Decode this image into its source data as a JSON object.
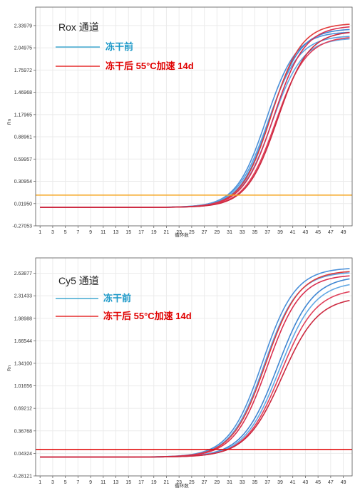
{
  "chart_data": [
    {
      "type": "line",
      "channel_title": "Rox 通道",
      "ylabel": "Rn",
      "xlabel": "循环数",
      "x_ticks": [
        "1",
        "3",
        "5",
        "7",
        "9",
        "11",
        "13",
        "15",
        "17",
        "19",
        "21",
        "23",
        "25",
        "27",
        "29",
        "31",
        "33",
        "35",
        "37",
        "39",
        "41",
        "43",
        "45",
        "47",
        "49"
      ],
      "y_ticks": [
        "2.33979",
        "2.04975",
        "1.75972",
        "1.46968",
        "1.17965",
        "0.88961",
        "0.59957",
        "0.30954",
        "0.01950",
        "-0.27053"
      ],
      "xlim": [
        0.3,
        50.4
      ],
      "ylim": [
        -0.27053,
        2.58
      ],
      "threshold": 0.13,
      "threshold_color": "#f5a623",
      "legend": [
        {
          "label": "冻干前",
          "color": "#1a98c8"
        },
        {
          "label": "冻干后 55°C加速 14d",
          "color": "#e00000"
        }
      ],
      "series": [
        {
          "group": "冻干前",
          "color": "#4a90d9",
          "baseline": -0.03,
          "plateau": 2.26,
          "midpoint": 36.8,
          "slope": 0.42
        },
        {
          "group": "冻干前",
          "color": "#5aa0e0",
          "baseline": -0.03,
          "plateau": 2.21,
          "midpoint": 37.1,
          "slope": 0.41
        },
        {
          "group": "冻干前",
          "color": "#3f86d2",
          "baseline": -0.03,
          "plateau": 2.3,
          "midpoint": 37.4,
          "slope": 0.42
        },
        {
          "group": "冻干前",
          "color": "#62a8e4",
          "baseline": -0.03,
          "plateau": 2.18,
          "midpoint": 37.7,
          "slope": 0.41
        },
        {
          "group": "冻干后 55°C加速 14d",
          "color": "#e23b3b",
          "baseline": -0.03,
          "plateau": 2.37,
          "midpoint": 37.6,
          "slope": 0.42
        },
        {
          "group": "冻干后 55°C加速 14d",
          "color": "#d93050",
          "baseline": -0.03,
          "plateau": 2.34,
          "midpoint": 38.0,
          "slope": 0.41
        },
        {
          "group": "冻干后 55°C加速 14d",
          "color": "#e0405a",
          "baseline": -0.03,
          "plateau": 2.2,
          "midpoint": 38.3,
          "slope": 0.41
        },
        {
          "group": "冻干后 55°C加速 14d",
          "color": "#cc2a40",
          "baseline": -0.03,
          "plateau": 2.27,
          "midpoint": 38.6,
          "slope": 0.41
        }
      ]
    },
    {
      "type": "line",
      "channel_title": "Cy5 通道",
      "ylabel": "Rn",
      "xlabel": "循环数",
      "x_ticks": [
        "1",
        "3",
        "5",
        "7",
        "9",
        "11",
        "13",
        "15",
        "17",
        "19",
        "21",
        "23",
        "25",
        "27",
        "29",
        "31",
        "33",
        "35",
        "37",
        "39",
        "41",
        "43",
        "45",
        "47",
        "49"
      ],
      "y_ticks": [
        "2.63877",
        "2.31433",
        "1.98988",
        "1.66544",
        "1.34100",
        "1.01656",
        "0.69212",
        "0.36768",
        "0.04324",
        "-0.28121"
      ],
      "xlim": [
        0.3,
        50.4
      ],
      "ylim": [
        -0.28121,
        2.86
      ],
      "threshold": 0.1,
      "threshold_color": "#e00000",
      "legend": [
        {
          "label": "冻干前",
          "color": "#1a98c8"
        },
        {
          "label": "冻干后 55°C加速 14d",
          "color": "#e00000"
        }
      ],
      "series": [
        {
          "group": "冻干前",
          "color": "#4a90d9",
          "baseline": -0.01,
          "plateau": 2.72,
          "midpoint": 36.2,
          "slope": 0.38
        },
        {
          "group": "冻干前",
          "color": "#5aa0e0",
          "baseline": -0.01,
          "plateau": 2.66,
          "midpoint": 36.5,
          "slope": 0.38
        },
        {
          "group": "冻干前",
          "color": "#3f86d2",
          "baseline": -0.01,
          "plateau": 2.6,
          "midpoint": 38.6,
          "slope": 0.36
        },
        {
          "group": "冻干前",
          "color": "#62a8e4",
          "baseline": -0.01,
          "plateau": 2.52,
          "midpoint": 38.9,
          "slope": 0.36
        },
        {
          "group": "冻干后 55°C加速 14d",
          "color": "#e23b3b",
          "baseline": -0.01,
          "plateau": 2.68,
          "midpoint": 36.7,
          "slope": 0.38
        },
        {
          "group": "冻干后 55°C加速 14d",
          "color": "#d93050",
          "baseline": -0.01,
          "plateau": 2.62,
          "midpoint": 37.0,
          "slope": 0.38
        },
        {
          "group": "冻干后 55°C加速 14d",
          "color": "#e0405a",
          "baseline": -0.01,
          "plateau": 2.42,
          "midpoint": 39.1,
          "slope": 0.36
        },
        {
          "group": "冻干后 55°C加速 14d",
          "color": "#cc2a40",
          "baseline": -0.01,
          "plateau": 2.3,
          "midpoint": 39.3,
          "slope": 0.35
        }
      ]
    }
  ]
}
